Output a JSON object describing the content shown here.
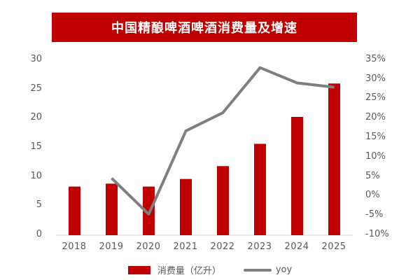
{
  "title": "中国精酿啤酒啤酒消费量及增速",
  "colors": {
    "bar": "#c00000",
    "line": "#7f7f7f",
    "title_bg": "#c00000",
    "axis": "#d9d9d9"
  },
  "left_axis": {
    "ticks": [
      "30",
      "25",
      "20",
      "15",
      "10",
      "5",
      "0"
    ]
  },
  "right_axis": {
    "ticks": [
      "35%",
      "30%",
      "25%",
      "20%",
      "15%",
      "10%",
      "5%",
      "0%",
      "-5%",
      "-10%"
    ]
  },
  "x_axis": {
    "ticks": [
      "2018",
      "2019",
      "2020",
      "2021",
      "2022",
      "2023",
      "2024",
      "2025"
    ]
  },
  "legend": {
    "bar_label": "消费量（亿升）",
    "line_label": "yoy"
  },
  "chart_data": {
    "type": "bar",
    "title": "中国精酿啤酒啤酒消费量及增速",
    "categories": [
      "2018",
      "2019",
      "2020",
      "2021",
      "2022",
      "2023",
      "2024",
      "2025"
    ],
    "series": [
      {
        "name": "消费量（亿升）",
        "type": "bar",
        "axis": "left",
        "values": [
          8.3,
          8.8,
          8.3,
          9.6,
          11.8,
          15.6,
          20.2,
          25.9
        ]
      },
      {
        "name": "yoy",
        "type": "line",
        "axis": "right",
        "unit": "%",
        "values": [
          null,
          4.6,
          -4.6,
          16.7,
          21.4,
          32.9,
          29.0,
          27.9
        ]
      }
    ],
    "xlabel": "",
    "ylabel": "",
    "ylim": [
      0,
      30
    ],
    "y2lim": [
      -10,
      35
    ],
    "grid": false,
    "legend_position": "bottom"
  }
}
